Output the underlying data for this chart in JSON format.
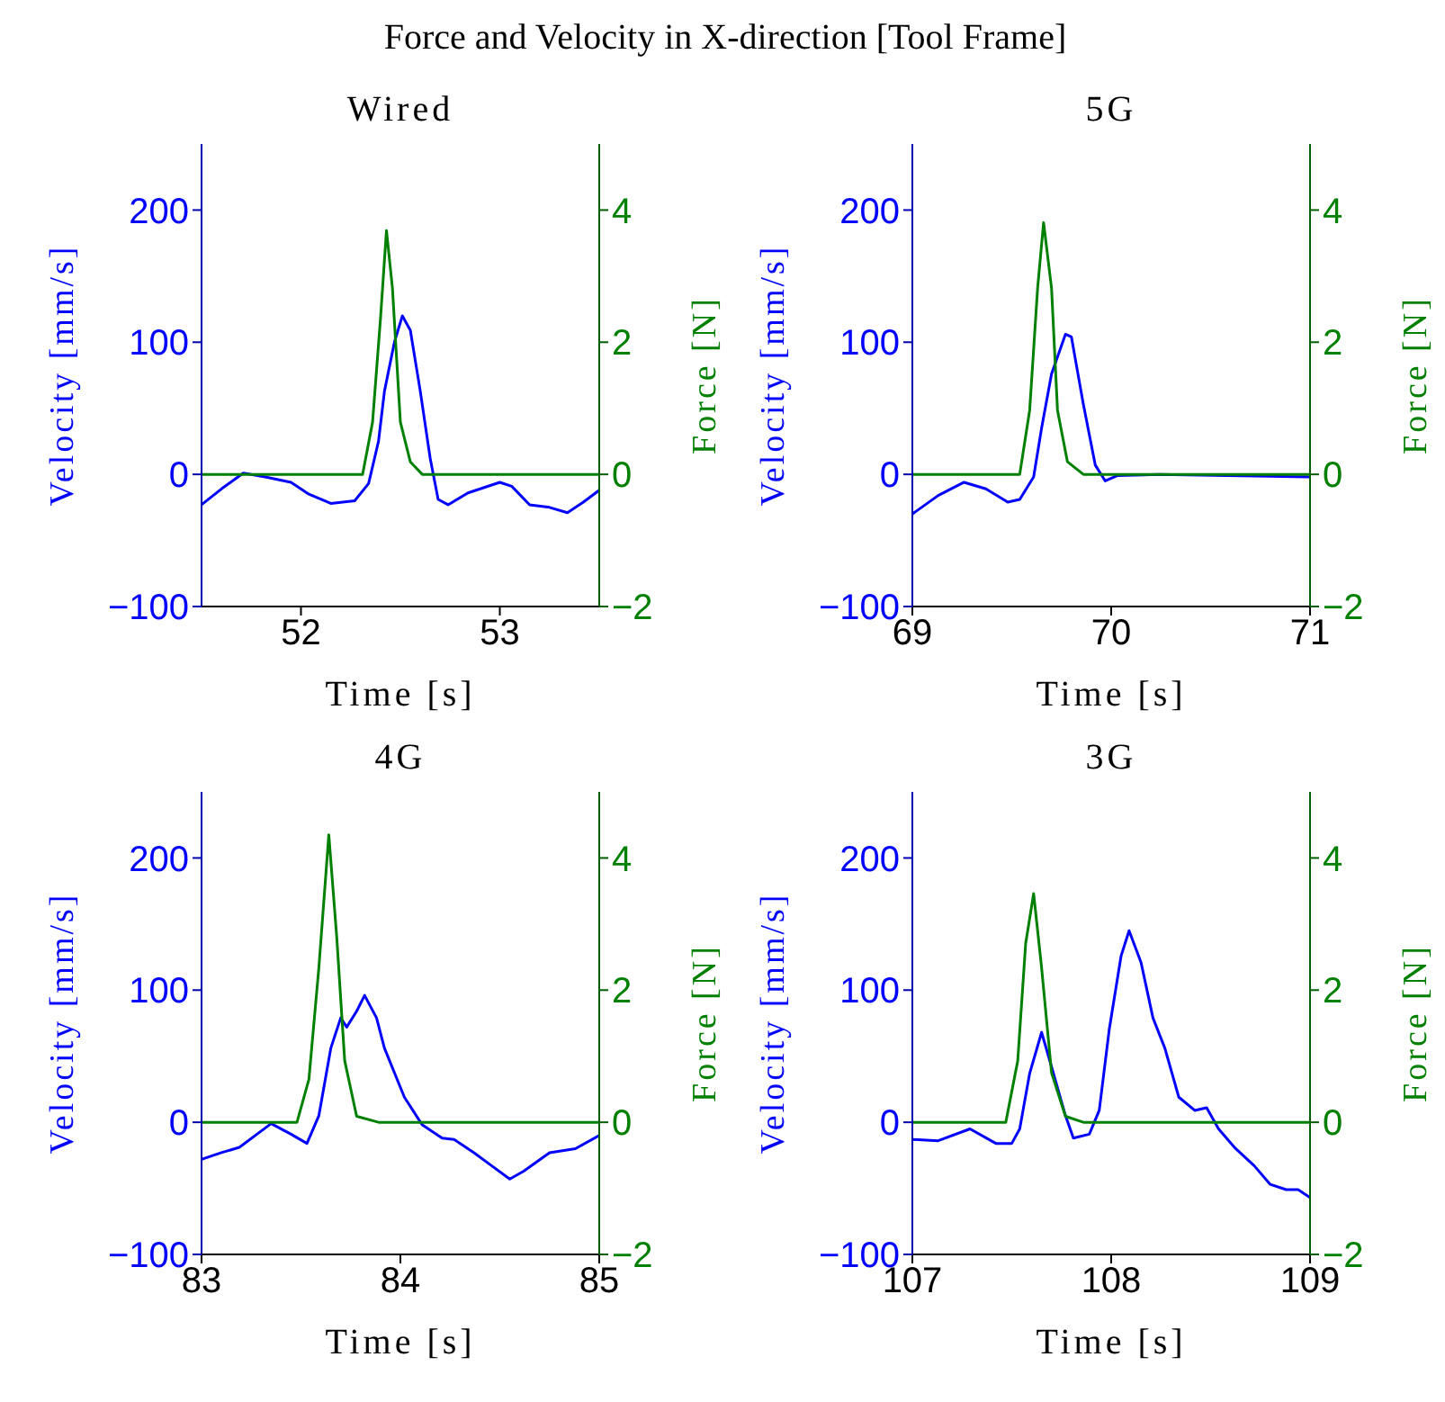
{
  "chart_data": [
    {
      "type": "line",
      "title": "Wired",
      "annotations": [
        "Force and Velocity in X-direction [Tool Frame]"
      ],
      "xlabel": "Time [s]",
      "ylabel": "Velocity [mm/s]",
      "y2label": "Force [N]",
      "xlim": [
        51.5,
        53.5
      ],
      "xticks": [
        52,
        53
      ],
      "ylim": [
        -100,
        250
      ],
      "yticks": [
        -100,
        0,
        100,
        200
      ],
      "y2lim": [
        -2,
        5
      ],
      "y2ticks": [
        -2,
        0,
        2,
        4
      ],
      "marker": "none",
      "line_style": "solid",
      "grid": false,
      "series": [
        {
          "color": "#0000ff",
          "x": [
            51.5,
            51.6,
            51.71,
            51.82,
            51.95,
            52.04,
            52.15,
            52.27,
            52.34,
            52.39,
            52.42,
            52.47,
            52.51,
            52.55,
            52.6,
            52.65,
            52.69,
            52.74,
            52.84,
            53.0,
            53.06,
            53.15,
            53.25,
            53.34,
            53.42,
            53.5
          ],
          "values": [
            -23,
            -11,
            1,
            -2,
            -6,
            -15,
            -22,
            -20,
            -7,
            25,
            63,
            100,
            120,
            109,
            63,
            12,
            -19,
            -23,
            -14,
            -6,
            -9,
            -23,
            -25,
            -29,
            -21,
            -12
          ]
        },
        {
          "color": "#008000",
          "axis": "y2",
          "x": [
            51.5,
            52.31,
            52.36,
            52.4,
            52.43,
            52.46,
            52.5,
            52.55,
            52.61,
            53.5
          ],
          "values": [
            0,
            0,
            0.79,
            2.36,
            3.69,
            2.82,
            0.79,
            0.19,
            0,
            0
          ]
        }
      ]
    },
    {
      "type": "line",
      "title": "5G",
      "xlabel": "Time [s]",
      "ylabel": "Velocity [mm/s]",
      "y2label": "Force [N]",
      "xlim": [
        69,
        71
      ],
      "xticks": [
        69,
        70,
        71
      ],
      "ylim": [
        -100,
        250
      ],
      "yticks": [
        -100,
        0,
        100,
        200
      ],
      "y2lim": [
        -2,
        5
      ],
      "y2ticks": [
        -2,
        0,
        2,
        4
      ],
      "marker": "none",
      "line_style": "solid",
      "grid": false,
      "series": [
        {
          "color": "#0000ff",
          "x": [
            69.0,
            69.13,
            69.26,
            69.37,
            69.48,
            69.54,
            69.61,
            69.65,
            69.7,
            69.77,
            69.8,
            69.86,
            69.92,
            69.97,
            70.03,
            70.24,
            71.0
          ],
          "values": [
            -30,
            -16,
            -6,
            -11,
            -21,
            -19,
            -2,
            35,
            76,
            106,
            104,
            53,
            7,
            -5,
            -1,
            0,
            -2
          ]
        },
        {
          "color": "#008000",
          "axis": "y2",
          "x": [
            69.0,
            69.54,
            69.59,
            69.63,
            69.66,
            69.7,
            69.73,
            69.78,
            69.86,
            71.0
          ],
          "values": [
            0,
            0,
            0.97,
            2.82,
            3.81,
            2.82,
            0.97,
            0.19,
            0,
            0
          ]
        }
      ]
    },
    {
      "type": "line",
      "title": "4G",
      "xlabel": "Time [s]",
      "ylabel": "Velocity [mm/s]",
      "y2label": "Force [N]",
      "xlim": [
        83,
        85
      ],
      "xticks": [
        83,
        84,
        85
      ],
      "ylim": [
        -100,
        250
      ],
      "yticks": [
        -100,
        0,
        100,
        200
      ],
      "y2lim": [
        -2,
        5
      ],
      "y2ticks": [
        -2,
        0,
        2,
        4
      ],
      "marker": "none",
      "line_style": "solid",
      "grid": false,
      "series": [
        {
          "color": "#0000ff",
          "x": [
            83.0,
            83.1,
            83.19,
            83.35,
            83.45,
            83.53,
            83.59,
            83.65,
            83.7,
            83.73,
            83.78,
            83.82,
            83.88,
            83.92,
            84.02,
            84.11,
            84.21,
            84.27,
            84.37,
            84.46,
            84.55,
            84.62,
            84.75,
            84.88,
            85.0
          ],
          "values": [
            -28,
            -23,
            -19,
            -1,
            -9,
            -16,
            5,
            56,
            79,
            72,
            84,
            96,
            79,
            56,
            19,
            -2,
            -12,
            -13,
            -23,
            -33,
            -43,
            -37,
            -23,
            -20,
            -10
          ]
        },
        {
          "color": "#008000",
          "axis": "y2",
          "x": [
            83.0,
            83.48,
            83.54,
            83.59,
            83.64,
            83.68,
            83.72,
            83.78,
            83.89,
            85.0
          ],
          "values": [
            0,
            0,
            0.65,
            2.34,
            4.35,
            2.8,
            0.93,
            0.09,
            0,
            0
          ]
        }
      ]
    },
    {
      "type": "line",
      "title": "3G",
      "xlabel": "Time [s]",
      "ylabel": "Velocity [mm/s]",
      "y2label": "Force [N]",
      "xlim": [
        107,
        109
      ],
      "xticks": [
        107,
        108,
        109
      ],
      "ylim": [
        -100,
        250
      ],
      "yticks": [
        -100,
        0,
        100,
        200
      ],
      "y2lim": [
        -2,
        5
      ],
      "y2ticks": [
        -2,
        0,
        2,
        4
      ],
      "marker": "none",
      "line_style": "solid",
      "grid": false,
      "series": [
        {
          "color": "#0000ff",
          "x": [
            107.0,
            107.13,
            107.29,
            107.42,
            107.5,
            107.54,
            107.59,
            107.65,
            107.7,
            107.77,
            107.81,
            107.89,
            107.94,
            107.99,
            108.05,
            108.09,
            108.15,
            108.21,
            108.27,
            108.34,
            108.42,
            108.48,
            108.54,
            108.62,
            108.72,
            108.8,
            108.88,
            108.94,
            109.0
          ],
          "values": [
            -13,
            -14,
            -5,
            -16,
            -16,
            -5,
            37,
            68,
            42,
            5,
            -12,
            -9,
            9,
            70,
            126,
            145,
            121,
            79,
            56,
            19,
            9,
            11,
            -5,
            -19,
            -33,
            -47,
            -51,
            -51,
            -57
          ]
        },
        {
          "color": "#008000",
          "axis": "y2",
          "x": [
            107.0,
            107.47,
            107.53,
            107.57,
            107.61,
            107.65,
            107.7,
            107.77,
            107.86,
            109.0
          ],
          "values": [
            0,
            0,
            0.93,
            2.71,
            3.46,
            2.34,
            0.75,
            0.09,
            0,
            0
          ]
        }
      ]
    }
  ]
}
